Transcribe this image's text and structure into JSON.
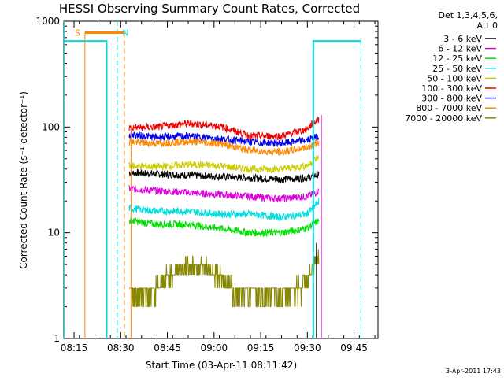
{
  "chart_data": {
    "type": "line",
    "title": "HESSI Observing Summary Count Rates, Corrected",
    "xlabel": "Start Time (03-Apr-11 08:11:42)",
    "ylabel": "Corrected Count Rate (s⁻¹ detector⁻¹)",
    "y_scale": "log",
    "ylim": [
      1,
      1000
    ],
    "y_ticks": [
      1,
      10,
      100,
      1000
    ],
    "y_tick_labels": [
      "1",
      "10",
      "100",
      "1000"
    ],
    "x_tick_labels": [
      "08:15",
      "08:30",
      "08:45",
      "09:00",
      "09:15",
      "09:30",
      "09:45"
    ],
    "x_ticks_min": [
      3.3,
      18.3,
      33.3,
      48.3,
      63.3,
      78.3,
      93.3
    ],
    "xlim": [
      0,
      101
    ],
    "grid": false,
    "legend_header": [
      "Det 1,3,4,5,6,",
      "Att 0"
    ],
    "legend_position": "right",
    "timestamp": "3-Apr-2011 17:43",
    "series": [
      {
        "name": "3 - 6 keV",
        "color": "#000000",
        "points": [
          [
            21,
            37
          ],
          [
            30,
            36
          ],
          [
            40,
            35
          ],
          [
            50,
            34
          ],
          [
            60,
            33
          ],
          [
            70,
            32
          ],
          [
            78,
            33
          ],
          [
            80,
            34
          ],
          [
            82,
            36
          ]
        ]
      },
      {
        "name": "6 - 12 keV",
        "color": "#dd00dd",
        "points": [
          [
            21,
            26
          ],
          [
            30,
            25
          ],
          [
            40,
            24
          ],
          [
            50,
            23
          ],
          [
            60,
            22
          ],
          [
            70,
            21
          ],
          [
            78,
            22
          ],
          [
            80,
            23
          ],
          [
            82,
            25
          ]
        ]
      },
      {
        "name": "12 - 25 keV",
        "color": "#00dd00",
        "points": [
          [
            21,
            13
          ],
          [
            30,
            12
          ],
          [
            40,
            12
          ],
          [
            50,
            11
          ],
          [
            60,
            10
          ],
          [
            70,
            10
          ],
          [
            78,
            11
          ],
          [
            80,
            12
          ],
          [
            82,
            13
          ]
        ]
      },
      {
        "name": "25 - 50 keV",
        "color": "#00dddd",
        "points": [
          [
            21,
            17
          ],
          [
            30,
            16
          ],
          [
            40,
            16
          ],
          [
            50,
            15
          ],
          [
            60,
            15
          ],
          [
            70,
            14
          ],
          [
            78,
            15
          ],
          [
            80,
            17
          ],
          [
            82,
            20
          ]
        ]
      },
      {
        "name": "50 - 100 keV",
        "color": "#cccc00",
        "points": [
          [
            21,
            43
          ],
          [
            30,
            42
          ],
          [
            40,
            44
          ],
          [
            50,
            43
          ],
          [
            60,
            40
          ],
          [
            70,
            40
          ],
          [
            78,
            43
          ],
          [
            80,
            47
          ],
          [
            82,
            52
          ]
        ]
      },
      {
        "name": "100 - 300 keV",
        "color": "#ee0000",
        "points": [
          [
            21,
            98
          ],
          [
            30,
            100
          ],
          [
            40,
            108
          ],
          [
            50,
            102
          ],
          [
            60,
            82
          ],
          [
            70,
            82
          ],
          [
            78,
            95
          ],
          [
            80,
            108
          ],
          [
            82,
            118
          ]
        ]
      },
      {
        "name": "300 - 800 keV",
        "color": "#0000ee",
        "points": [
          [
            21,
            85
          ],
          [
            30,
            80
          ],
          [
            40,
            82
          ],
          [
            50,
            78
          ],
          [
            60,
            72
          ],
          [
            70,
            70
          ],
          [
            78,
            75
          ],
          [
            80,
            78
          ],
          [
            82,
            82
          ]
        ]
      },
      {
        "name": "800 - 7000 keV",
        "color": "#ff8800",
        "points": [
          [
            21,
            72
          ],
          [
            30,
            70
          ],
          [
            40,
            73
          ],
          [
            50,
            70
          ],
          [
            60,
            60
          ],
          [
            70,
            58
          ],
          [
            78,
            64
          ],
          [
            80,
            68
          ],
          [
            82,
            72
          ]
        ]
      },
      {
        "name": "7000 - 20000 keV",
        "color": "#888800",
        "points": [
          [
            21,
            2.6
          ],
          [
            28,
            2.7
          ],
          [
            35,
            4.2
          ],
          [
            42,
            5.0
          ],
          [
            48,
            4.2
          ],
          [
            55,
            2.8
          ],
          [
            62,
            2.7
          ],
          [
            70,
            2.7
          ],
          [
            76,
            3.0
          ],
          [
            80,
            4.2
          ],
          [
            82,
            6.2
          ]
        ]
      }
    ],
    "annotations": [
      {
        "text": "S",
        "color": "#ff8800",
        "x": 3.5
      },
      {
        "text": "N",
        "color": "#00dddd",
        "x": 18.8
      }
    ]
  }
}
